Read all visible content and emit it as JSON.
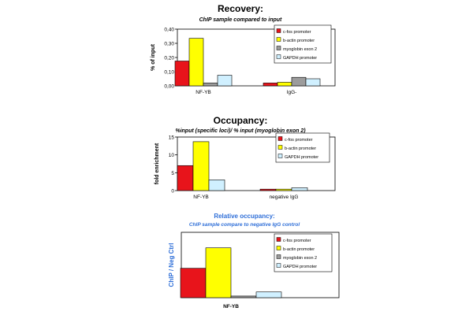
{
  "colors": {
    "series": [
      "#e8141b",
      "#ffff00",
      "#9c9c9c",
      "#d0f0ff"
    ],
    "blue_title": "#2f6fd8",
    "gridline": "#000000"
  },
  "chart_data": [
    {
      "type": "bar",
      "title": "Recovery:",
      "subtitle": "ChIP sample compared to input",
      "ylabel": "% of input",
      "ylim": [
        0,
        0.4
      ],
      "yticks": [
        "0,00",
        "0,10",
        "0,20",
        "0,30",
        "0,40"
      ],
      "categories": [
        "NF-YB",
        "IgG-"
      ],
      "series": [
        {
          "name": "c-fos promoter",
          "values": [
            0.175,
            0.02
          ]
        },
        {
          "name": "b-actin promoter",
          "values": [
            0.335,
            0.025
          ]
        },
        {
          "name": "myoglobin exon 2",
          "values": [
            0.02,
            0.06
          ]
        },
        {
          "name": "GAPDH promoter",
          "values": [
            0.075,
            0.05
          ]
        }
      ],
      "legend": "top-right",
      "grid": false
    },
    {
      "type": "bar",
      "title": "Occupancy:",
      "subtitle": "%input (specific loci)/ % input (myoglobin exon 2)",
      "ylabel": "fold enrichment",
      "ylim": [
        0,
        15
      ],
      "yticks": [
        "0",
        "5",
        "10",
        "15"
      ],
      "categories": [
        "NF-YB",
        "negative IgG"
      ],
      "series": [
        {
          "name": "c-fos promoter",
          "values": [
            7.0,
            0.4
          ]
        },
        {
          "name": "b-actin promoter",
          "values": [
            13.7,
            0.4
          ]
        },
        {
          "name": "GAPDH promoter",
          "values": [
            3.0,
            0.8
          ]
        }
      ],
      "legend": "top-right",
      "grid": false
    },
    {
      "type": "bar",
      "title": "Relative occupancy:",
      "subtitle": "ChIP sample compare to negative IgG control",
      "ylabel": "ChIP / Neg Ctrl",
      "ylim": [
        0,
        16
      ],
      "yticks": [],
      "categories": [
        "NF-YB"
      ],
      "series": [
        {
          "name": "c-fos promoter",
          "values": [
            7.2
          ]
        },
        {
          "name": "b-actin promoter",
          "values": [
            12.2
          ]
        },
        {
          "name": "myoglobin exon 2",
          "values": [
            0.4
          ]
        },
        {
          "name": "GAPDH promoter",
          "values": [
            1.4
          ]
        }
      ],
      "legend": "top-right",
      "grid": false
    }
  ]
}
